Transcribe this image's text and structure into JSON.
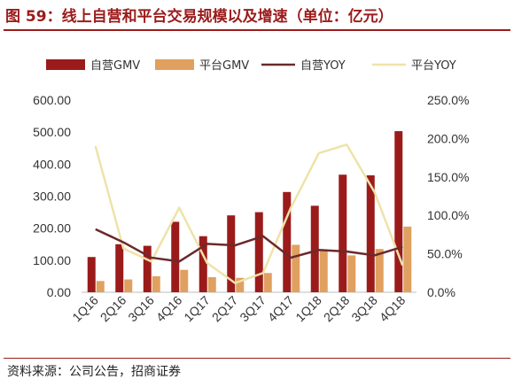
{
  "figure": {
    "title": "图 59：线上自营和平台交易规模以及增速（单位：亿元）",
    "source": "资料来源：公司公告，招商证券"
  },
  "colors": {
    "self_gmv": "#9b1b1b",
    "platform_gmv": "#e0a060",
    "self_yoy": "#6b2a2a",
    "platform_yoy": "#eee3a8",
    "accent": "#9b1b1b"
  },
  "chart_data": {
    "type": "bar",
    "title": "",
    "categories": [
      "1Q16",
      "2Q16",
      "3Q16",
      "4Q16",
      "1Q17",
      "2Q17",
      "3Q17",
      "4Q17",
      "1Q18",
      "2Q18",
      "3Q18",
      "4Q18"
    ],
    "series": [
      {
        "name": "自营GMV",
        "kind": "bar",
        "axis": "left",
        "values": [
          110,
          150,
          145,
          220,
          175,
          240,
          250,
          313,
          270,
          367,
          365,
          503
        ]
      },
      {
        "name": "平台GMV",
        "kind": "bar",
        "axis": "left",
        "values": [
          35,
          40,
          50,
          70,
          47,
          45,
          60,
          148,
          130,
          115,
          135,
          205
        ]
      },
      {
        "name": "自营YOY",
        "kind": "line",
        "axis": "right",
        "values": [
          82,
          65,
          45,
          40,
          63,
          61,
          73,
          45,
          55,
          53,
          48,
          59
        ]
      },
      {
        "name": "平台YOY",
        "kind": "line",
        "axis": "right",
        "values": [
          190,
          57,
          40,
          110,
          38,
          12,
          25,
          110,
          181,
          192,
          130,
          35
        ]
      }
    ],
    "y_left": {
      "ylim": [
        0,
        600
      ],
      "ticks": [
        "0.00",
        "100.00",
        "200.00",
        "300.00",
        "400.00",
        "500.00",
        "600.00"
      ]
    },
    "y_right": {
      "ylim": [
        0,
        250
      ],
      "ticks": [
        "0.0%",
        "50.0%",
        "100.0%",
        "150.0%",
        "200.0%",
        "250.0%"
      ]
    },
    "grid": false,
    "legend": "top"
  }
}
